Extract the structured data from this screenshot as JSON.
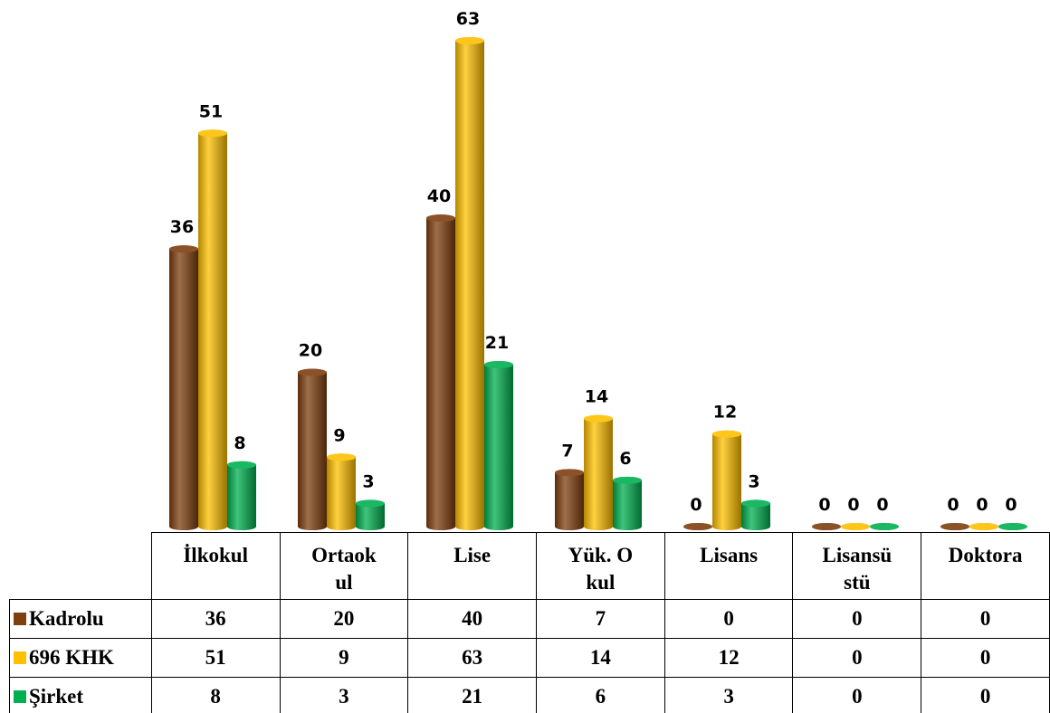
{
  "chart_data": {
    "type": "bar",
    "categories": [
      "İlkokul",
      "Ortaokul",
      "Lise",
      "Yük. Okul",
      "Lisans",
      "Lisansüstü",
      "Doktora"
    ],
    "series": [
      {
        "name": "Kadrolu",
        "color": "#7f3f0f",
        "values": [
          36,
          20,
          40,
          7,
          0,
          0,
          0
        ]
      },
      {
        "name": "696 KHK",
        "color": "#ffc000",
        "values": [
          51,
          9,
          63,
          14,
          12,
          0,
          0
        ]
      },
      {
        "name": "Şirket",
        "color": "#00b050",
        "values": [
          8,
          3,
          21,
          6,
          3,
          0,
          0
        ]
      }
    ]
  }
}
